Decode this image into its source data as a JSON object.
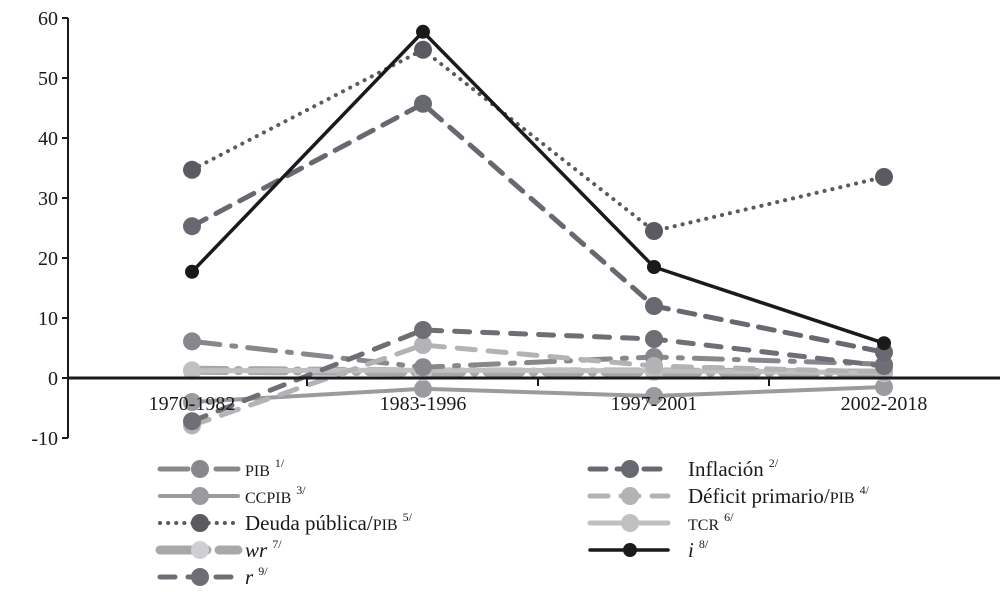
{
  "chart_data": {
    "type": "line",
    "title": "",
    "xlabel": "",
    "ylabel": "",
    "categories": [
      "1970-1982",
      "1983-1996",
      "1997-2001",
      "2002-2018"
    ],
    "ylim": [
      -10,
      60
    ],
    "yticks": [
      -10,
      0,
      10,
      20,
      30,
      40,
      50,
      60
    ],
    "grid": false,
    "legend_position": "bottom",
    "series": [
      {
        "name": "PIB",
        "note": "1/",
        "color": "#88888c",
        "style": "dash-dot",
        "values": [
          6.1,
          1.8,
          3.5,
          2.3
        ]
      },
      {
        "name": "Inflación",
        "note": "2/",
        "color": "#66696f",
        "style": "dashed",
        "values": [
          25.3,
          45.7,
          12.0,
          4.3
        ]
      },
      {
        "name": "CCPIB",
        "note": "3/",
        "color": "#9b9b9f",
        "style": "solid",
        "values": [
          -4.0,
          -1.8,
          -3.0,
          -1.5
        ]
      },
      {
        "name": "Déficit primario/PIB",
        "note": "4/",
        "color": "#b3b3b5",
        "style": "dashed-light",
        "values": [
          -7.9,
          5.5,
          2.0,
          1.0
        ]
      },
      {
        "name": "Deuda pública/PIB",
        "note": "5/",
        "color": "#5a5a60",
        "style": "dotted",
        "values": [
          34.7,
          54.7,
          24.5,
          33.5
        ]
      },
      {
        "name": "TCR",
        "note": "6/",
        "color": "#c0bfc1",
        "style": "solid-light",
        "values": [
          1.2,
          1.3,
          1.2,
          0.9
        ]
      },
      {
        "name": "wr",
        "note": "7/",
        "color": "#a8a8ab",
        "style": "thick-dash-dot",
        "values": [
          1.3,
          1.0,
          1.0,
          0.8
        ]
      },
      {
        "name": "i",
        "note": "8/",
        "color": "#1a1a1a",
        "style": "solid-black",
        "values": [
          17.7,
          57.7,
          18.5,
          5.8
        ]
      },
      {
        "name": "r",
        "note": "9/",
        "color": "#6e6e74",
        "style": "dashed-dark",
        "values": [
          -7.2,
          8.0,
          6.5,
          2.0
        ]
      }
    ]
  }
}
